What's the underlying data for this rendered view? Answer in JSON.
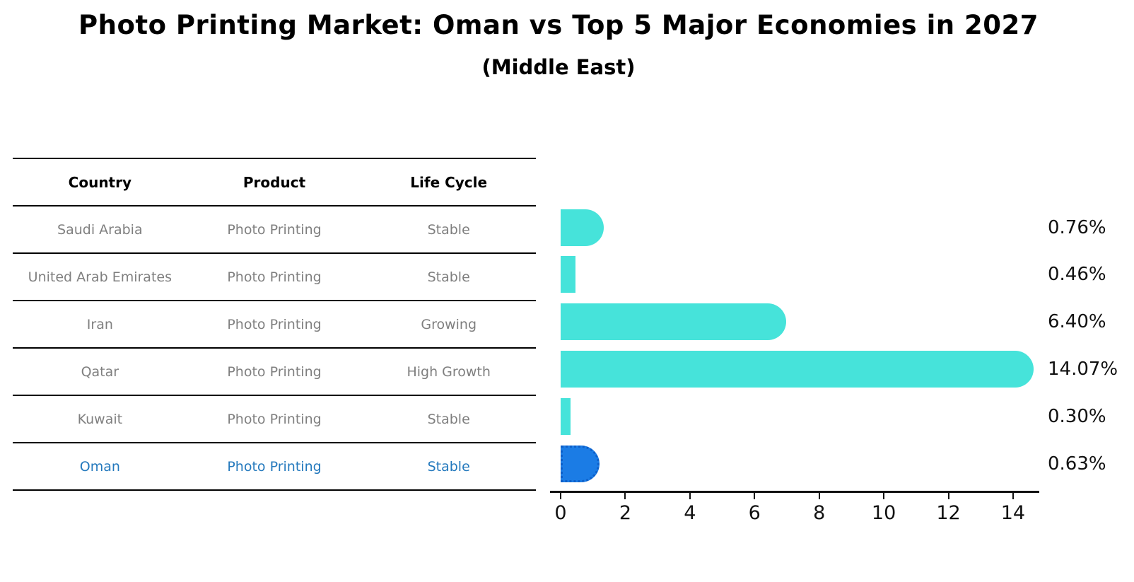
{
  "colors": {
    "bar": "#46e3da",
    "highlight_bar_fill": "#1b7ce5",
    "highlight_bar_border": "#0d5fc9",
    "highlight_text": "#2479bd",
    "table_text": "#7f7f7f",
    "axis_text": "#111111"
  },
  "table": {
    "headers": [
      "Country",
      "Product",
      "Life Cycle"
    ],
    "rows": [
      {
        "country": "Saudi Arabia",
        "product": "Photo Printing",
        "life_cycle": "Stable",
        "highlighted": false
      },
      {
        "country": "United Arab Emirates",
        "product": "Photo Printing",
        "life_cycle": "Stable",
        "highlighted": false
      },
      {
        "country": "Iran",
        "product": "Photo Printing",
        "life_cycle": "Growing",
        "highlighted": false
      },
      {
        "country": "Qatar",
        "product": "Photo Printing",
        "life_cycle": "High Growth",
        "highlighted": false
      },
      {
        "country": "Kuwait",
        "product": "Photo Printing",
        "life_cycle": "Stable",
        "highlighted": false
      },
      {
        "country": "Oman",
        "product": "Photo Printing",
        "life_cycle": "Stable",
        "highlighted": true
      }
    ]
  },
  "chart_data": {
    "type": "bar",
    "orientation": "horizontal",
    "title": "Photo Printing Market: Oman vs Top 5 Major Economies in 2027",
    "subtitle": "(Middle East)",
    "categories": [
      "Saudi Arabia",
      "United Arab Emirates",
      "Iran",
      "Qatar",
      "Kuwait",
      "Oman"
    ],
    "values": [
      0.76,
      0.46,
      6.4,
      14.07,
      0.3,
      0.63
    ],
    "value_labels": [
      "0.76%",
      "0.46%",
      "6.40%",
      "14.07%",
      "0.30%",
      "0.63%"
    ],
    "highlight_category": "Oman",
    "xlabel": "",
    "ylabel": "",
    "xticks": [
      0,
      2,
      4,
      6,
      8,
      10,
      12,
      14
    ],
    "xlim": [
      0,
      14.8
    ],
    "grid": false,
    "legend": false
  }
}
